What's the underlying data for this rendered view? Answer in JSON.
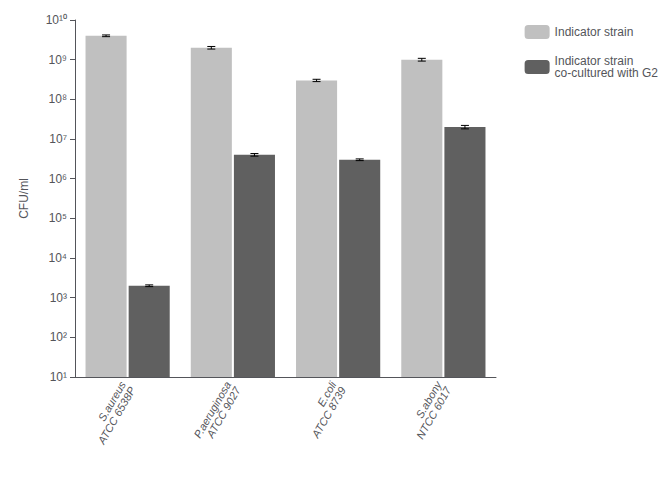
{
  "chart_data": {
    "type": "bar",
    "ylabel": "CFU/ml",
    "categories": [
      "S.aureus\nATCC 6538P",
      "P.aeruginosa\nATCC 9027",
      "E.coli\nATCC 8739",
      "S.abony\nNTCC 6017"
    ],
    "series": [
      {
        "name": "Indicator strain",
        "color": "#c0c0c0",
        "values": [
          4000000000.0,
          2000000000.0,
          300000000.0,
          1000000000.0
        ],
        "errors": [
          200000000.0,
          150000000.0,
          20000000.0,
          80000000.0
        ]
      },
      {
        "name": "Indicator strain\nco-cultured with G2",
        "color": "#606060",
        "values": [
          2000.0,
          4000000.0,
          3000000.0,
          20000000.0
        ],
        "errors": [
          100.0,
          300000.0,
          150000.0,
          2000000.0
        ]
      }
    ],
    "log": "y",
    "ylim": [
      10,
      10000000000.0
    ],
    "yticks": [
      {
        "value": 10,
        "label": "10¹"
      },
      {
        "value": 100,
        "label": "10²"
      },
      {
        "value": 1000,
        "label": "10³"
      },
      {
        "value": 10000,
        "label": "10⁴"
      },
      {
        "value": 100000,
        "label": "10⁵"
      },
      {
        "value": 1000000,
        "label": "10⁶"
      },
      {
        "value": 10000000,
        "label": "10⁷"
      },
      {
        "value": 100000000,
        "label": "10⁸"
      },
      {
        "value": 1000000000,
        "label": "10⁹"
      },
      {
        "value": 10000000000,
        "label": "10¹⁰"
      }
    ],
    "grid": false,
    "legend": "upper right"
  }
}
